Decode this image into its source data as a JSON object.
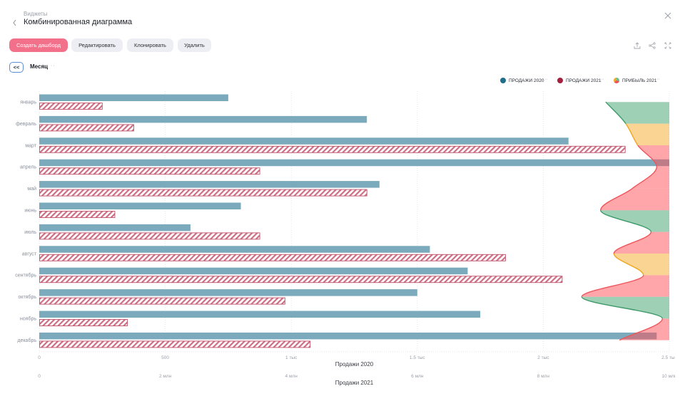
{
  "header": {
    "breadcrumb": "Виджеты",
    "title": "Комбинированная диаграмма",
    "back_icon": "chevron-left-icon",
    "close_icon": "close-icon"
  },
  "toolbar": {
    "create_dashboard": "Создать дашборд",
    "edit": "Редактировать",
    "clone": "Клонировать",
    "delete": "Удалить",
    "accent_color": "#f2708a",
    "right_icons": [
      "export-icon",
      "share-icon",
      "fullscreen-icon"
    ]
  },
  "filter": {
    "collapse_label": "<<",
    "dimension": "Месяц",
    "more": "··"
  },
  "legend": [
    {
      "label": "ПРОДАЖИ 2020",
      "color": "#1f6f8b",
      "more": "··"
    },
    {
      "label": "ПРОДАЖИ 2021",
      "color": "#a3203f",
      "more": "··"
    },
    {
      "label": "ПРИБЫЛЬ 2021",
      "color": "multicolor",
      "more": "··"
    }
  ],
  "chart_data": {
    "type": "bar",
    "orientation": "horizontal",
    "title": "Комбинированная диаграмма",
    "categories": [
      "январь",
      "февраль",
      "март",
      "апрель",
      "май",
      "июнь",
      "июль",
      "август",
      "сентябрь",
      "октябрь",
      "ноябрь",
      "декабрь"
    ],
    "axes": [
      {
        "id": "x1",
        "title": "Продажи 2020",
        "range": [
          0,
          2500
        ],
        "ticks": [
          "0",
          "500",
          "1 тыс",
          "1.5 тыс",
          "2 тыс",
          "2.5 тыс"
        ]
      },
      {
        "id": "x2",
        "title": "Продажи 2021",
        "range": [
          0,
          10
        ],
        "unit": "млн",
        "ticks": [
          "0",
          "2 млн",
          "4 млн",
          "6 млн",
          "8 млн",
          "10 млн"
        ]
      }
    ],
    "series": [
      {
        "name": "Продажи 2020",
        "type": "bar",
        "axis": "x1",
        "color": "#7aaabb",
        "values": [
          750,
          1300,
          2100,
          2500,
          1350,
          800,
          600,
          1550,
          1700,
          1500,
          1750,
          2450
        ]
      },
      {
        "name": "Продажи 2021",
        "type": "bar",
        "axis": "x2",
        "style": "hatched",
        "color": "#c0506a",
        "values": [
          1.0,
          1.5,
          9.3,
          3.5,
          5.2,
          1.2,
          3.5,
          7.4,
          8.3,
          3.9,
          1.4,
          4.3
        ]
      },
      {
        "name": "Прибыль 2021",
        "type": "area",
        "axis": "hidden (measured from right edge, fraction of axis width)",
        "values_fraction": [
          0.101,
          0.069,
          0.05,
          0.02,
          0.059,
          0.109,
          0.029,
          0.088,
          0.041,
          0.139,
          0.011,
          0.079
        ],
        "segment_status": [
          "green",
          "yellow",
          "red",
          "red",
          "red",
          "green",
          "red",
          "yellow",
          "red",
          "green",
          "red"
        ]
      }
    ],
    "status_colors": {
      "green": {
        "fill": "#3ba16b",
        "stroke": "#3f9a6a"
      },
      "yellow": {
        "fill": "#f3a927",
        "stroke": "#f0a51e"
      },
      "red": {
        "fill": "#ff4d55",
        "stroke": "#f0545a"
      }
    },
    "grid": true,
    "legend_position": "top-right"
  }
}
